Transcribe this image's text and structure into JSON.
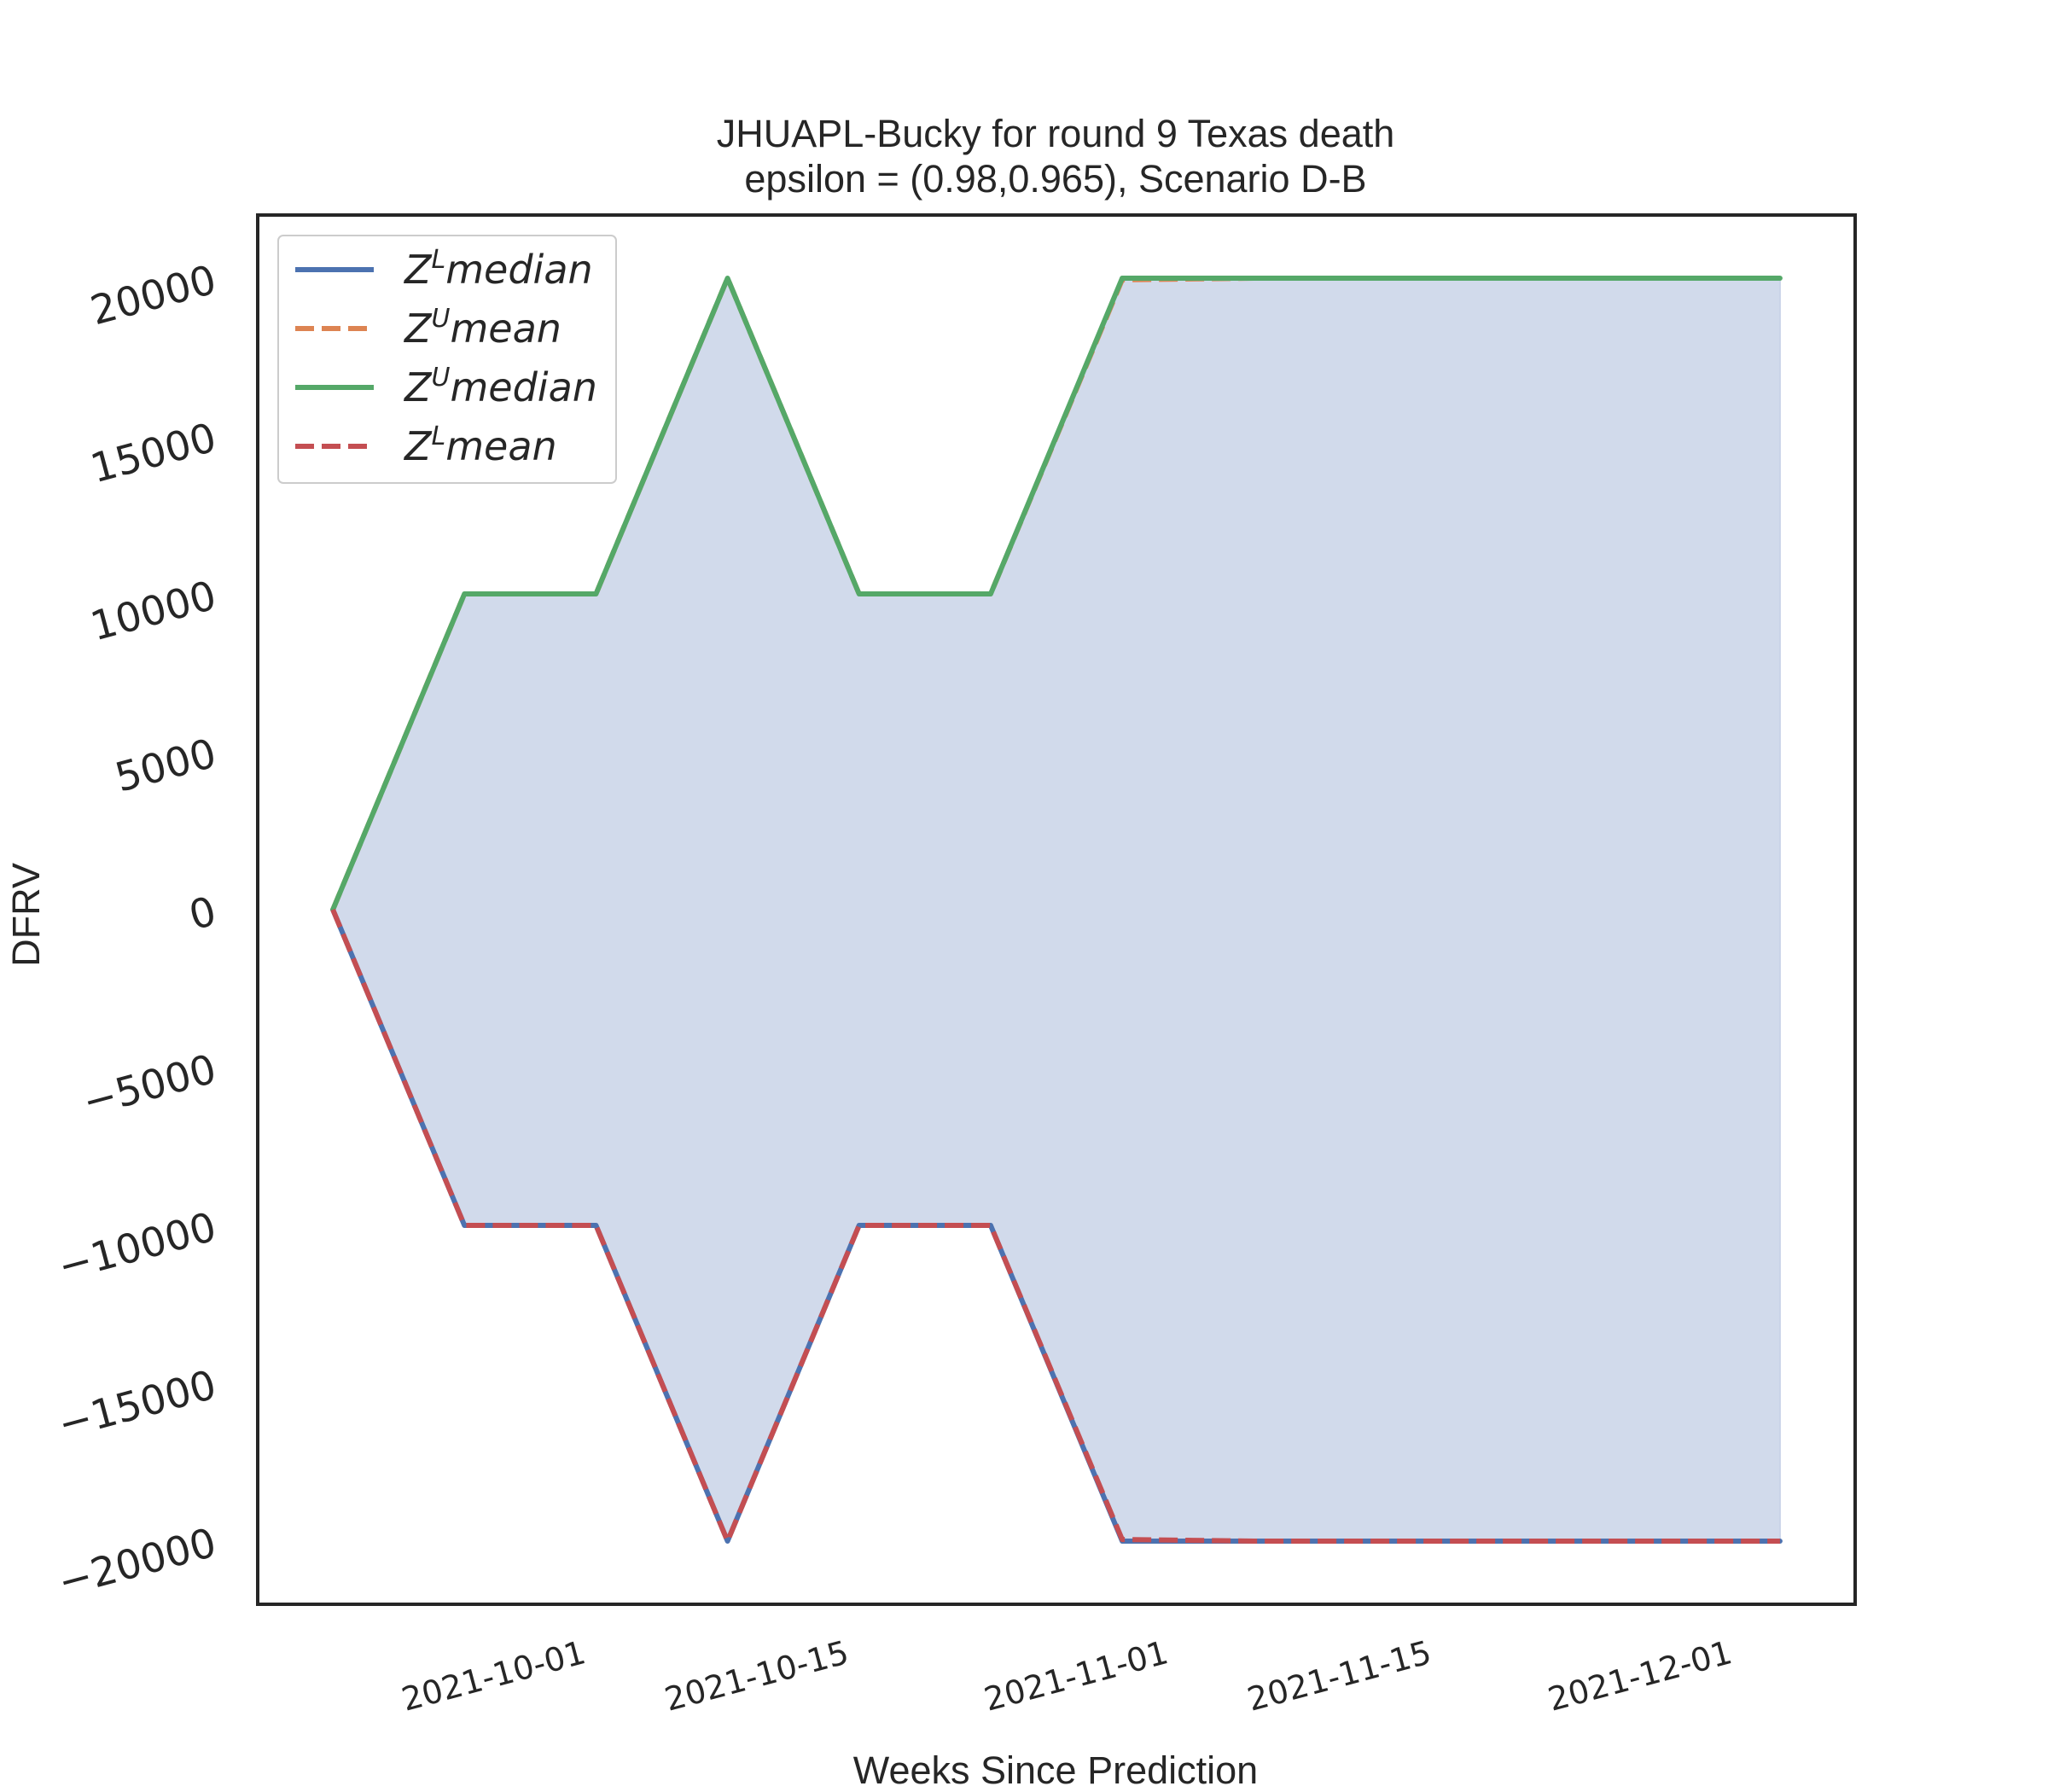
{
  "chart_data": {
    "type": "line",
    "title": "JHUAPL-Bucky for round 9 Texas  death",
    "subtitle": "epsilon = (0.98,0.965), Scenario D-B",
    "xlabel": "Weeks Since Prediction",
    "ylabel": "DFRV",
    "x": [
      "2021-09-18",
      "2021-09-25",
      "2021-10-02",
      "2021-10-09",
      "2021-10-16",
      "2021-10-23",
      "2021-10-30",
      "2021-11-06",
      "2021-11-13",
      "2021-11-20",
      "2021-11-27",
      "2021-12-04"
    ],
    "xlim": [
      "2021-09-14",
      "2021-12-08"
    ],
    "ylim": [
      -22000,
      22000
    ],
    "xticks": [
      "2021-10-01",
      "2021-10-15",
      "2021-11-01",
      "2021-11-15",
      "2021-12-01"
    ],
    "yticks": [
      20000,
      15000,
      10000,
      5000,
      0,
      -5000,
      -10000,
      -15000,
      -20000
    ],
    "ytick_labels": [
      "20000",
      "15000",
      "10000",
      "5000",
      "0",
      "−5000",
      "−10000",
      "−15000",
      "−20000"
    ],
    "grid": false,
    "legend_position": "top-left",
    "fill_between": {
      "lower": "Z^L median",
      "upper": "Z^U median",
      "color": "#c9d3e8"
    },
    "series": [
      {
        "name": "Z^L median",
        "label_main": "Z",
        "label_sup": "L",
        "label_rest": "median",
        "style": "solid",
        "color": "#4c72b0",
        "values": [
          0,
          -10000,
          -10000,
          -20000,
          -10000,
          -10000,
          -20000,
          -20000,
          -20000,
          -20000,
          -20000,
          -20000
        ]
      },
      {
        "name": "Z^U mean",
        "label_main": "Z",
        "label_sup": "U",
        "label_rest": "mean",
        "style": "dashed",
        "color": "#dd8452",
        "values": [
          0,
          10000,
          10000,
          20000,
          10000,
          10000,
          19950,
          20000,
          20000,
          20000,
          20000,
          20000
        ]
      },
      {
        "name": "Z^U median",
        "label_main": "Z",
        "label_sup": "U",
        "label_rest": "median",
        "style": "solid",
        "color": "#55a868",
        "values": [
          0,
          10000,
          10000,
          20000,
          10000,
          10000,
          20000,
          20000,
          20000,
          20000,
          20000,
          20000
        ]
      },
      {
        "name": "Z^L mean",
        "label_main": "Z",
        "label_sup": "L",
        "label_rest": "mean",
        "style": "dashed",
        "color": "#c44e52",
        "values": [
          0,
          -10000,
          -10000,
          -20000,
          -10000,
          -10000,
          -19950,
          -20000,
          -20000,
          -20000,
          -20000,
          -20000
        ]
      }
    ]
  }
}
